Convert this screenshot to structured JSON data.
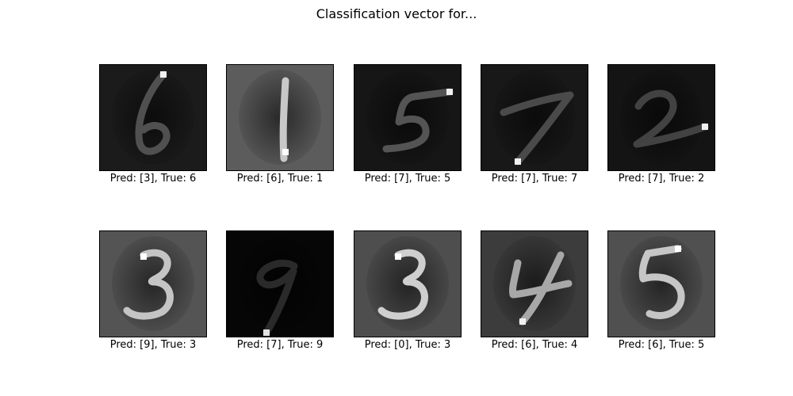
{
  "chart_data": {
    "type": "image-grid",
    "title": "Classification vector for...",
    "panels": [
      {
        "caption": "Pred: [3], True: 6",
        "digit": "6",
        "bg": "#1b1b1b",
        "fg": "#505050",
        "hi": "#f0f0f0"
      },
      {
        "caption": "Pred: [6], True: 1",
        "digit": "1",
        "bg": "#5c5c5c",
        "fg": "#c8c8c8",
        "hi": "#ffffff"
      },
      {
        "caption": "Pred: [7], True: 5",
        "digit": "5",
        "bg": "#161616",
        "fg": "#545454",
        "hi": "#f0f0f0"
      },
      {
        "caption": "Pred: [7], True: 7",
        "digit": "7",
        "bg": "#181818",
        "fg": "#4a4a4a",
        "hi": "#f0f0f0"
      },
      {
        "caption": "Pred: [7], True: 2",
        "digit": "2",
        "bg": "#141414",
        "fg": "#424242",
        "hi": "#f0f0f0"
      },
      {
        "caption": "Pred: [9], True: 3",
        "digit": "3",
        "bg": "#545454",
        "fg": "#c4c4c4",
        "hi": "#ffffff"
      },
      {
        "caption": "Pred: [7], True: 9",
        "digit": "9",
        "bg": "#060606",
        "fg": "#2a2a2a",
        "hi": "#e0e0e0"
      },
      {
        "caption": "Pred: [0], True: 3",
        "digit": "3",
        "bg": "#4e4e4e",
        "fg": "#cfcfcf",
        "hi": "#ffffff"
      },
      {
        "caption": "Pred: [6], True: 4",
        "digit": "4",
        "bg": "#3c3c3c",
        "fg": "#a8a8a8",
        "hi": "#f0f0f0"
      },
      {
        "caption": "Pred: [6], True: 5",
        "digit": "5",
        "bg": "#505050",
        "fg": "#c6c6c6",
        "hi": "#ffffff"
      }
    ]
  }
}
